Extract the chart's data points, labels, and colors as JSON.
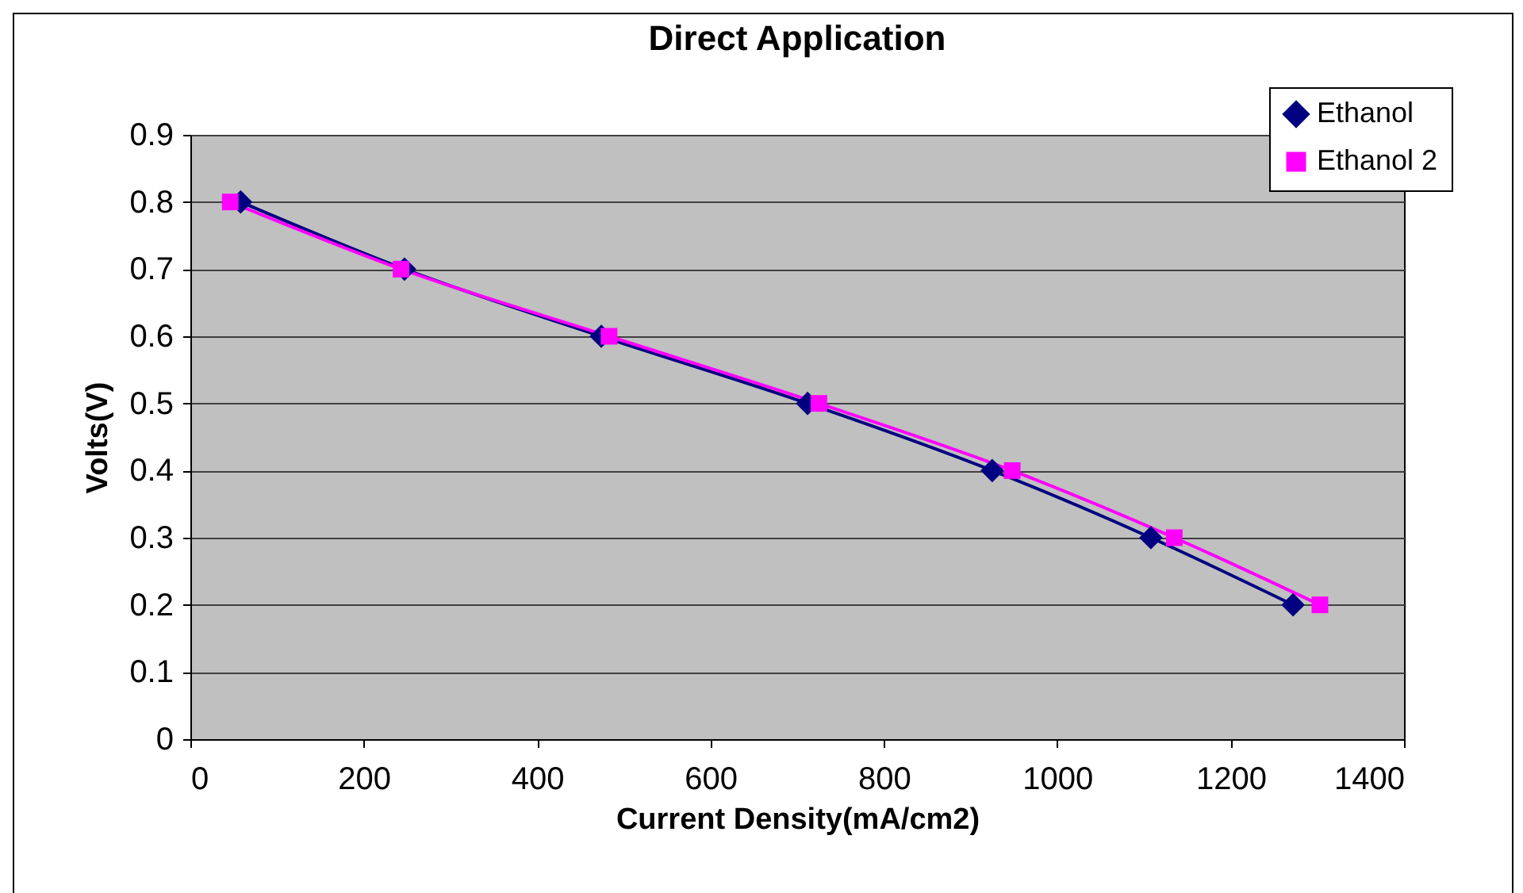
{
  "chart_data": {
    "type": "line",
    "title": "Direct Application",
    "xlabel": "Current Density(mA/cm2)",
    "ylabel": "Volts(V)",
    "series": [
      {
        "name": "Ethanol",
        "color": "#000080",
        "marker": "diamond",
        "x": [
          58,
          247,
          474,
          712,
          925,
          1108,
          1272
        ],
        "values": [
          0.8,
          0.7,
          0.6,
          0.5,
          0.4,
          0.3,
          0.2
        ]
      },
      {
        "name": "Ethanol 2",
        "color": "#ff00ff",
        "marker": "square",
        "x": [
          46,
          243,
          483,
          725,
          948,
          1135,
          1303
        ],
        "values": [
          0.8,
          0.7,
          0.6,
          0.5,
          0.4,
          0.3,
          0.2
        ]
      }
    ],
    "xlim": [
      0,
      1400
    ],
    "xticks": [
      0,
      200,
      400,
      600,
      800,
      1000,
      1200,
      1400
    ],
    "ylim": [
      0,
      0.9
    ],
    "yticks": [
      0,
      0.1,
      0.2,
      0.3,
      0.4,
      0.5,
      0.6,
      0.7,
      0.8,
      0.9
    ],
    "grid": "y",
    "legend": "top right"
  }
}
